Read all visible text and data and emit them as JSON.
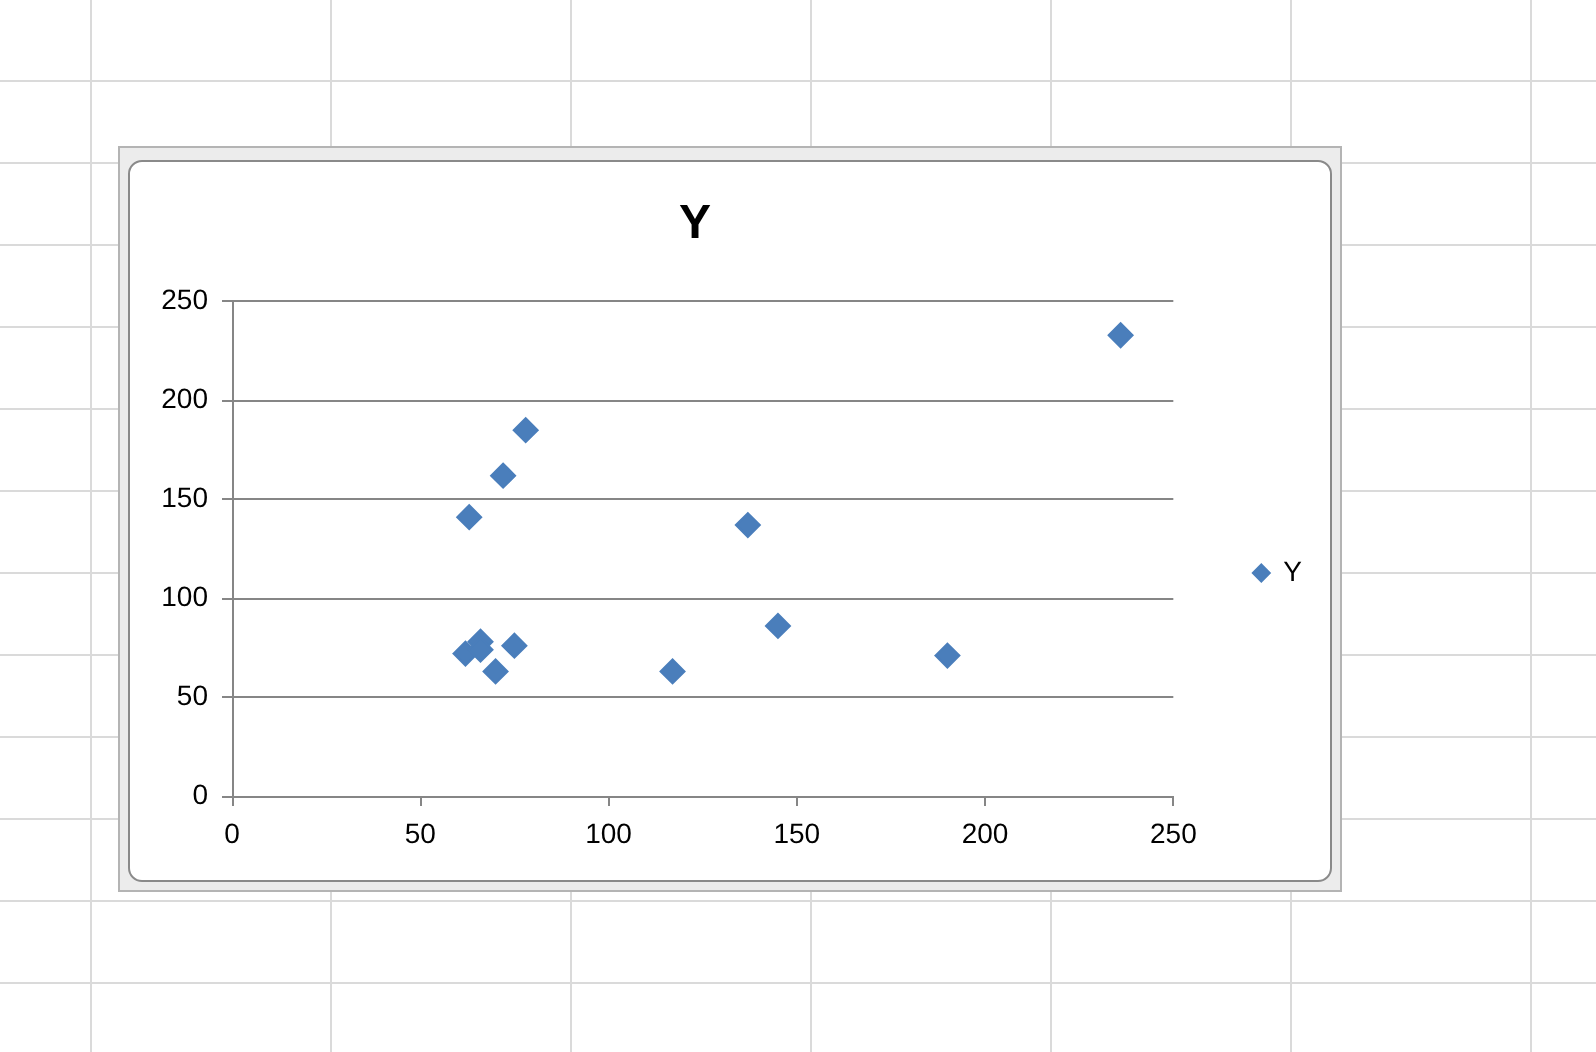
{
  "chart_data": {
    "type": "scatter",
    "title": "Y",
    "x": [
      63,
      72,
      78,
      62,
      66,
      66,
      70,
      75,
      117,
      137,
      145,
      190,
      236
    ],
    "series": [
      {
        "name": "Y",
        "color": "#4a7ebb",
        "values": [
          141,
          162,
          185,
          72,
          78,
          74,
          63,
          76,
          63,
          137,
          86,
          71,
          233
        ]
      }
    ],
    "xlim": [
      0,
      250
    ],
    "xticks": [
      0,
      50,
      100,
      150,
      200,
      250
    ],
    "ylim": [
      0,
      250
    ],
    "yticks": [
      0,
      50,
      100,
      150,
      200,
      250
    ],
    "grid": "y",
    "legend": "right",
    "marker": "diamond"
  }
}
